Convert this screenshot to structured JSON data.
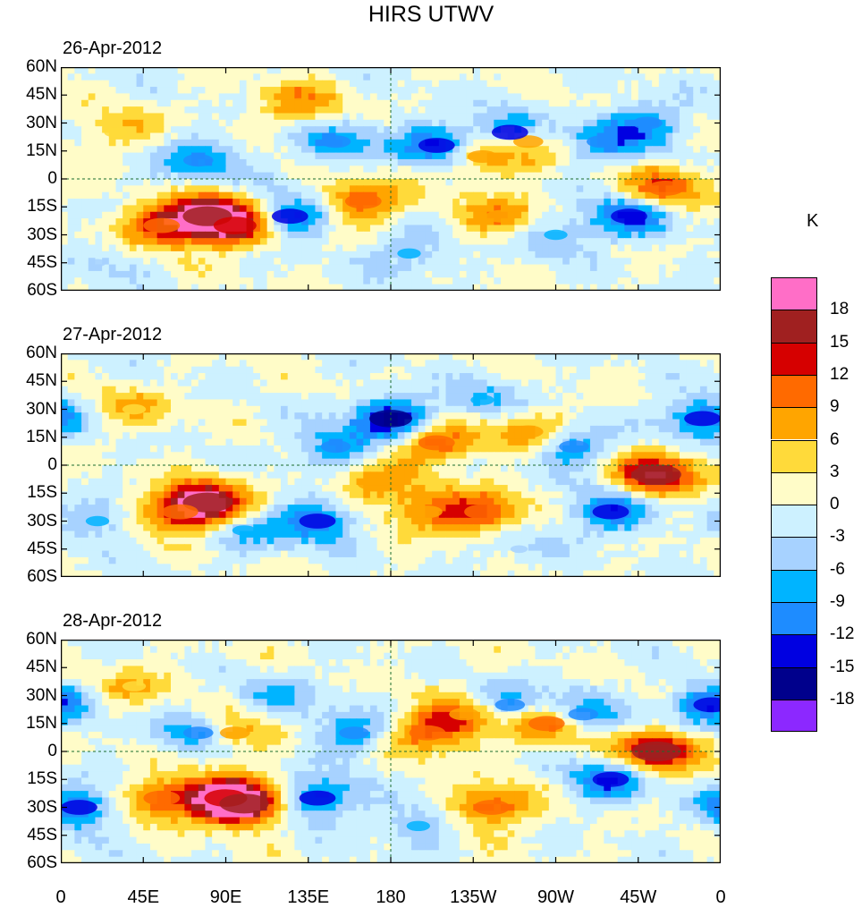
{
  "title": "HIRS UTWV",
  "chart_data": {
    "type": "heatmap",
    "title": "HIRS UTWV",
    "panels": [
      {
        "date": "26-Apr-2012",
        "anomalies": [
          {
            "lon": 80,
            "lat": -20,
            "value": 18
          },
          {
            "lon": 95,
            "lat": -25,
            "value": 15
          },
          {
            "lon": 55,
            "lat": -25,
            "value": 12
          },
          {
            "lon": 165,
            "lat": -12,
            "value": 12
          },
          {
            "lon": 230,
            "lat": 12,
            "value": 9
          },
          {
            "lon": 255,
            "lat": 20,
            "value": 9
          },
          {
            "lon": 330,
            "lat": -5,
            "value": 12
          },
          {
            "lon": 240,
            "lat": -20,
            "value": 9
          },
          {
            "lon": 130,
            "lat": 40,
            "value": 9
          },
          {
            "lon": 30,
            "lat": 25,
            "value": 6
          },
          {
            "lon": 150,
            "lat": 20,
            "value": -9
          },
          {
            "lon": 205,
            "lat": 18,
            "value": -12
          },
          {
            "lon": 245,
            "lat": 25,
            "value": -12
          },
          {
            "lon": 295,
            "lat": 20,
            "value": -9
          },
          {
            "lon": 320,
            "lat": 30,
            "value": -9
          },
          {
            "lon": 125,
            "lat": -20,
            "value": -12
          },
          {
            "lon": 190,
            "lat": -40,
            "value": -6
          },
          {
            "lon": 270,
            "lat": -30,
            "value": -6
          },
          {
            "lon": 75,
            "lat": 10,
            "value": -9
          },
          {
            "lon": 310,
            "lat": -20,
            "value": -12
          },
          {
            "lon": 20,
            "lat": -45,
            "value": -3
          }
        ]
      },
      {
        "date": "27-Apr-2012",
        "anomalies": [
          {
            "lon": 80,
            "lat": -20,
            "value": 18
          },
          {
            "lon": 65,
            "lat": -25,
            "value": 12
          },
          {
            "lon": 325,
            "lat": -5,
            "value": 18
          },
          {
            "lon": 205,
            "lat": 12,
            "value": 12
          },
          {
            "lon": 255,
            "lat": 18,
            "value": 9
          },
          {
            "lon": 230,
            "lat": -25,
            "value": 12
          },
          {
            "lon": 200,
            "lat": -25,
            "value": 9
          },
          {
            "lon": 170,
            "lat": -10,
            "value": 9
          },
          {
            "lon": 40,
            "lat": 30,
            "value": 6
          },
          {
            "lon": 180,
            "lat": 25,
            "value": -15
          },
          {
            "lon": 140,
            "lat": -30,
            "value": -12
          },
          {
            "lon": 150,
            "lat": 10,
            "value": -9
          },
          {
            "lon": 280,
            "lat": 10,
            "value": -9
          },
          {
            "lon": 300,
            "lat": -25,
            "value": -12
          },
          {
            "lon": 350,
            "lat": 25,
            "value": -12
          },
          {
            "lon": 100,
            "lat": -35,
            "value": -6
          },
          {
            "lon": 20,
            "lat": -30,
            "value": -6
          },
          {
            "lon": 230,
            "lat": 35,
            "value": -6
          },
          {
            "lon": 250,
            "lat": -45,
            "value": -3
          }
        ]
      },
      {
        "date": "28-Apr-2012",
        "anomalies": [
          {
            "lon": 90,
            "lat": -25,
            "value": 15
          },
          {
            "lon": 100,
            "lat": -28,
            "value": 18
          },
          {
            "lon": 55,
            "lat": -25,
            "value": 12
          },
          {
            "lon": 325,
            "lat": 0,
            "value": 18
          },
          {
            "lon": 200,
            "lat": 10,
            "value": 12
          },
          {
            "lon": 220,
            "lat": 20,
            "value": 9
          },
          {
            "lon": 235,
            "lat": -30,
            "value": 12
          },
          {
            "lon": 265,
            "lat": 15,
            "value": 12
          },
          {
            "lon": 95,
            "lat": 10,
            "value": 9
          },
          {
            "lon": 40,
            "lat": 35,
            "value": 6
          },
          {
            "lon": 140,
            "lat": -25,
            "value": -12
          },
          {
            "lon": 10,
            "lat": -30,
            "value": -12
          },
          {
            "lon": 75,
            "lat": 10,
            "value": -9
          },
          {
            "lon": 160,
            "lat": 10,
            "value": -9
          },
          {
            "lon": 285,
            "lat": 20,
            "value": -9
          },
          {
            "lon": 300,
            "lat": -15,
            "value": -12
          },
          {
            "lon": 355,
            "lat": 25,
            "value": -12
          },
          {
            "lon": 245,
            "lat": 25,
            "value": -9
          },
          {
            "lon": 195,
            "lat": -40,
            "value": -6
          },
          {
            "lon": 120,
            "lat": 30,
            "value": -6
          }
        ]
      }
    ],
    "x_ticks": [
      "0",
      "45E",
      "90E",
      "135E",
      "180",
      "135W",
      "90W",
      "45W",
      "0"
    ],
    "y_ticks": [
      "60N",
      "45N",
      "30N",
      "15N",
      "0",
      "15S",
      "30S",
      "45S",
      "60S"
    ],
    "xlim": [
      0,
      360
    ],
    "ylim": [
      -60,
      60
    ],
    "colorbar": {
      "unit": "K",
      "labels": [
        "18",
        "15",
        "12",
        "9",
        "6",
        "3",
        "0",
        "-3",
        "-6",
        "-9",
        "-12",
        "-15",
        "-18"
      ],
      "levels": [
        21,
        18,
        15,
        12,
        9,
        6,
        3,
        0,
        -3,
        -6,
        -9,
        -12,
        -15,
        -18,
        -21
      ],
      "colors": [
        "#ff6ec7",
        "#a02020",
        "#d60000",
        "#ff6a00",
        "#ffa500",
        "#ffda3a",
        "#fffcc8",
        "#cdf1ff",
        "#a7d2ff",
        "#00b4ff",
        "#1e8cff",
        "#0000e1",
        "#00008c",
        "#8c28ff"
      ]
    }
  }
}
